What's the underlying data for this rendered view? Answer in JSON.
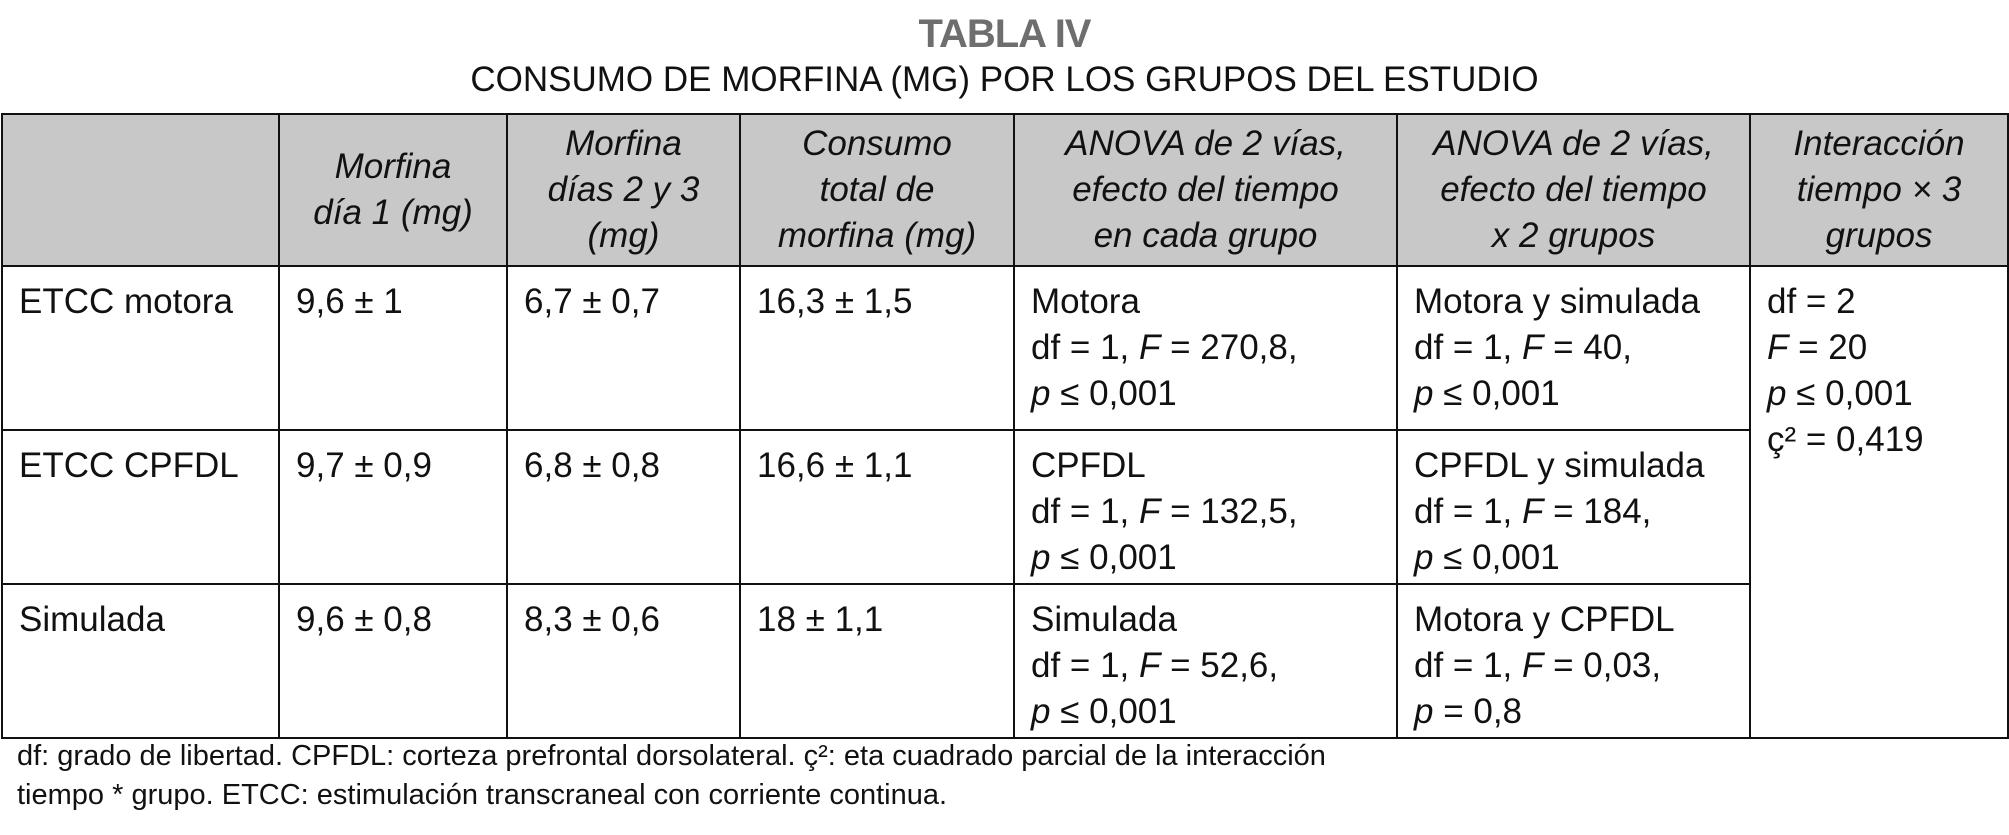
{
  "title": "TABLA IV",
  "subtitle": "CONSUMO DE MORFINA (MG) POR LOS GRUPOS DEL ESTUDIO",
  "headers": [
    [],
    [
      "Morfina",
      "día 1 (mg)"
    ],
    [
      "Morfina",
      "días 2 y 3",
      "(mg)"
    ],
    [
      "Consumo",
      "total de",
      "morfina (mg)"
    ],
    [
      "ANOVA de 2 vías,",
      "efecto del tiempo",
      "en cada grupo"
    ],
    [
      "ANOVA de 2 vías,",
      "efecto del tiempo",
      "x 2 grupos"
    ],
    [
      "Interacción",
      "tiempo × 3",
      "grupos"
    ]
  ],
  "rows": [
    {
      "group": "ETCC motora",
      "day1": "9,6 ± 1",
      "days23": "6,7 ± 0,7",
      "total": "16,3 ± 1,5",
      "anova_group": [
        "Motora",
        "df = 1, F = 270,8,",
        "p ≤ 0,001"
      ],
      "anova_pair": [
        "Motora y simulada",
        "df = 1, F = 40,",
        "p ≤ 0,001"
      ]
    },
    {
      "group": "ETCC CPFDL",
      "day1": "9,7 ± 0,9",
      "days23": "6,8 ± 0,8",
      "total": "16,6 ± 1,1",
      "anova_group": [
        "CPFDL",
        "df = 1, F = 132,5,",
        "p ≤ 0,001"
      ],
      "anova_pair": [
        "CPFDL y simulada",
        "df = 1, F = 184,",
        "p ≤ 0,001"
      ]
    },
    {
      "group": "Simulada",
      "day1": "9,6 ± 0,8",
      "days23": "8,3 ± 0,6",
      "total": "18 ± 1,1",
      "anova_group": [
        "Simulada",
        "df = 1, F = 52,6,",
        "p ≤ 0,001"
      ],
      "anova_pair": [
        "Motora y CPFDL",
        "df = 1, F = 0,03,",
        "p = 0,8"
      ]
    }
  ],
  "interaction": [
    "df = 2",
    "F = 20",
    "p ≤ 0,001",
    "ç² = 0,419"
  ],
  "notes": [
    "df: grado de libertad. CPFDL: corteza prefrontal dorsolateral. ç²: eta cuadrado parcial de la interacción",
    "tiempo * grupo. ETCC: estimulación transcraneal con corriente continua."
  ]
}
